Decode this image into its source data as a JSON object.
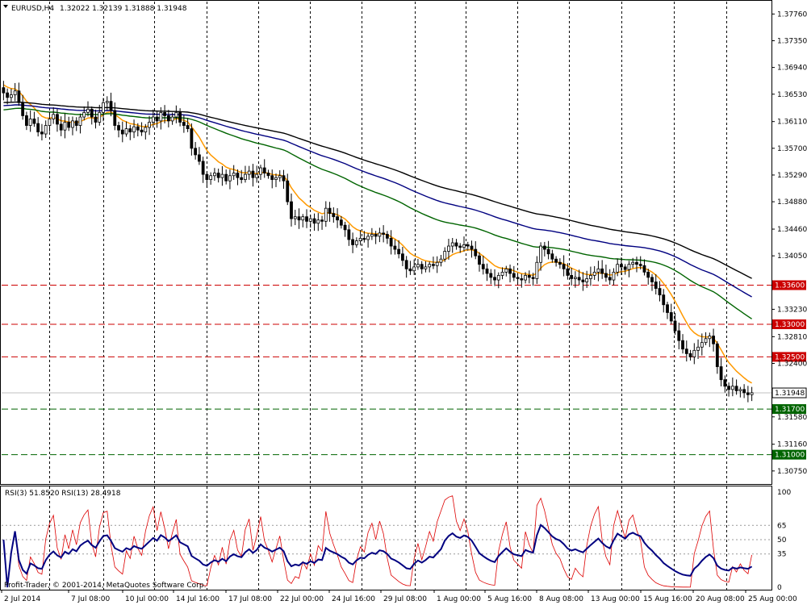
{
  "header": {
    "symbol": "EURUSD,H4",
    "ohlc": "1.32022 1.32139 1.31888 1.31948"
  },
  "rsi_header": {
    "label": "RSI(3) 51.8520  RSI(13) 28.4918"
  },
  "copyright": "Profit-Trader, © 2001-2014, MetaQuotes Software Corp.",
  "colors": {
    "background": "#ffffff",
    "candles": "#000000",
    "ma_fast": "#ff9900",
    "ma_green": "#006400",
    "ma_navy": "#000080",
    "ma_black": "#000000",
    "resistance": "#cc0000",
    "support": "#006400",
    "rsi3": "#dd0000",
    "rsi13": "#000080",
    "grid": "#000000"
  },
  "chart_data": [
    {
      "type": "candlestick",
      "symbol": "EURUSD",
      "timeframe": "H4",
      "price_axis_ticks": [
        "1.37760",
        "1.37350",
        "1.36940",
        "1.36530",
        "1.36110",
        "1.35700",
        "1.35290",
        "1.34880",
        "1.34460",
        "1.34050",
        "1.33230",
        "1.32810",
        "1.32400",
        "1.31580",
        "1.31160",
        "1.30750"
      ],
      "time_axis_labels": [
        "2 Jul 2014",
        "7 Jul 08:00",
        "10 Jul 00:00",
        "14 Jul 16:00",
        "17 Jul 08:00",
        "22 Jul 00:00",
        "24 Jul 16:00",
        "29 Jul 08:00",
        "1 Aug 00:00",
        "5 Aug 16:00",
        "8 Aug 08:00",
        "13 Aug 00:00",
        "15 Aug 16:00",
        "20 Aug 08:00",
        "25 Aug 00:00"
      ],
      "last_price": "1.31948",
      "closes": [
        1.3655,
        1.3648,
        1.3652,
        1.3658,
        1.364,
        1.362,
        1.3605,
        1.3615,
        1.3608,
        1.3595,
        1.3592,
        1.3605,
        1.3615,
        1.3622,
        1.3607,
        1.3598,
        1.361,
        1.3602,
        1.3612,
        1.3605,
        1.3618,
        1.3625,
        1.363,
        1.3618,
        1.361,
        1.3625,
        1.364,
        1.3642,
        1.3628,
        1.3605,
        1.3598,
        1.3592,
        1.36,
        1.3595,
        1.3603,
        1.3598,
        1.3595,
        1.3602,
        1.361,
        1.3618,
        1.3612,
        1.3625,
        1.362,
        1.3612,
        1.3618,
        1.3625,
        1.361,
        1.3605,
        1.36,
        1.357,
        1.356,
        1.355,
        1.353,
        1.3522,
        1.3528,
        1.3532,
        1.3525,
        1.353,
        1.352,
        1.3528,
        1.3532,
        1.3525,
        1.3522,
        1.353,
        1.3535,
        1.3525,
        1.353,
        1.354,
        1.3532,
        1.3528,
        1.3522,
        1.3525,
        1.3528,
        1.352,
        1.3488,
        1.3462,
        1.3465,
        1.346,
        1.3465,
        1.3458,
        1.3462,
        1.3455,
        1.346,
        1.3458,
        1.3478,
        1.347,
        1.3465,
        1.346,
        1.3452,
        1.3445,
        1.343,
        1.3422,
        1.3428,
        1.3432,
        1.343,
        1.3435,
        1.3438,
        1.3435,
        1.344,
        1.3438,
        1.3432,
        1.342,
        1.3415,
        1.3408,
        1.3398,
        1.3385,
        1.3382,
        1.3388,
        1.3392,
        1.3385,
        1.3388,
        1.3392,
        1.339,
        1.3395,
        1.34,
        1.3412,
        1.342,
        1.3425,
        1.342,
        1.3418,
        1.3422,
        1.342,
        1.3415,
        1.3405,
        1.3392,
        1.3385,
        1.3378,
        1.3372,
        1.3368,
        1.3375,
        1.338,
        1.3385,
        1.3378,
        1.3372,
        1.337,
        1.3368,
        1.3375,
        1.3372,
        1.337,
        1.3395,
        1.342,
        1.3415,
        1.3408,
        1.34,
        1.3395,
        1.3392,
        1.3385,
        1.3375,
        1.337,
        1.3372,
        1.3368,
        1.3365,
        1.337,
        1.3375,
        1.338,
        1.3385,
        1.3378,
        1.3372,
        1.3368,
        1.338,
        1.3392,
        1.3388,
        1.3384,
        1.3392,
        1.3395,
        1.3392,
        1.339,
        1.338,
        1.3372,
        1.3365,
        1.3355,
        1.3345,
        1.333,
        1.3318,
        1.3305,
        1.329,
        1.3275,
        1.3262,
        1.3255,
        1.325,
        1.326,
        1.3265,
        1.3272,
        1.3278,
        1.3282,
        1.327,
        1.3235,
        1.3215,
        1.3205,
        1.32,
        1.3205,
        1.3198,
        1.32,
        1.3195,
        1.3192,
        1.3195
      ]
    },
    {
      "type": "line",
      "title": "RSI(3) 51.8520  RSI(13) 28.4918",
      "ylim": [
        0,
        100
      ],
      "levels": [
        35,
        50,
        65
      ],
      "y_ticks": [
        "100",
        "65",
        "50",
        "35",
        "0"
      ]
    }
  ],
  "levels": [
    {
      "name": "resistance-1.33600",
      "label": "1.33600",
      "price": 1.336,
      "kind": "resistance"
    },
    {
      "name": "resistance-1.33000",
      "label": "1.33000",
      "price": 1.33,
      "kind": "resistance"
    },
    {
      "name": "resistance-1.32500",
      "label": "1.32500",
      "price": 1.325,
      "kind": "resistance"
    },
    {
      "name": "support-1.31700",
      "label": "1.31700",
      "price": 1.317,
      "kind": "support"
    },
    {
      "name": "support-1.31000",
      "label": "1.31000",
      "price": 1.31,
      "kind": "support"
    }
  ]
}
